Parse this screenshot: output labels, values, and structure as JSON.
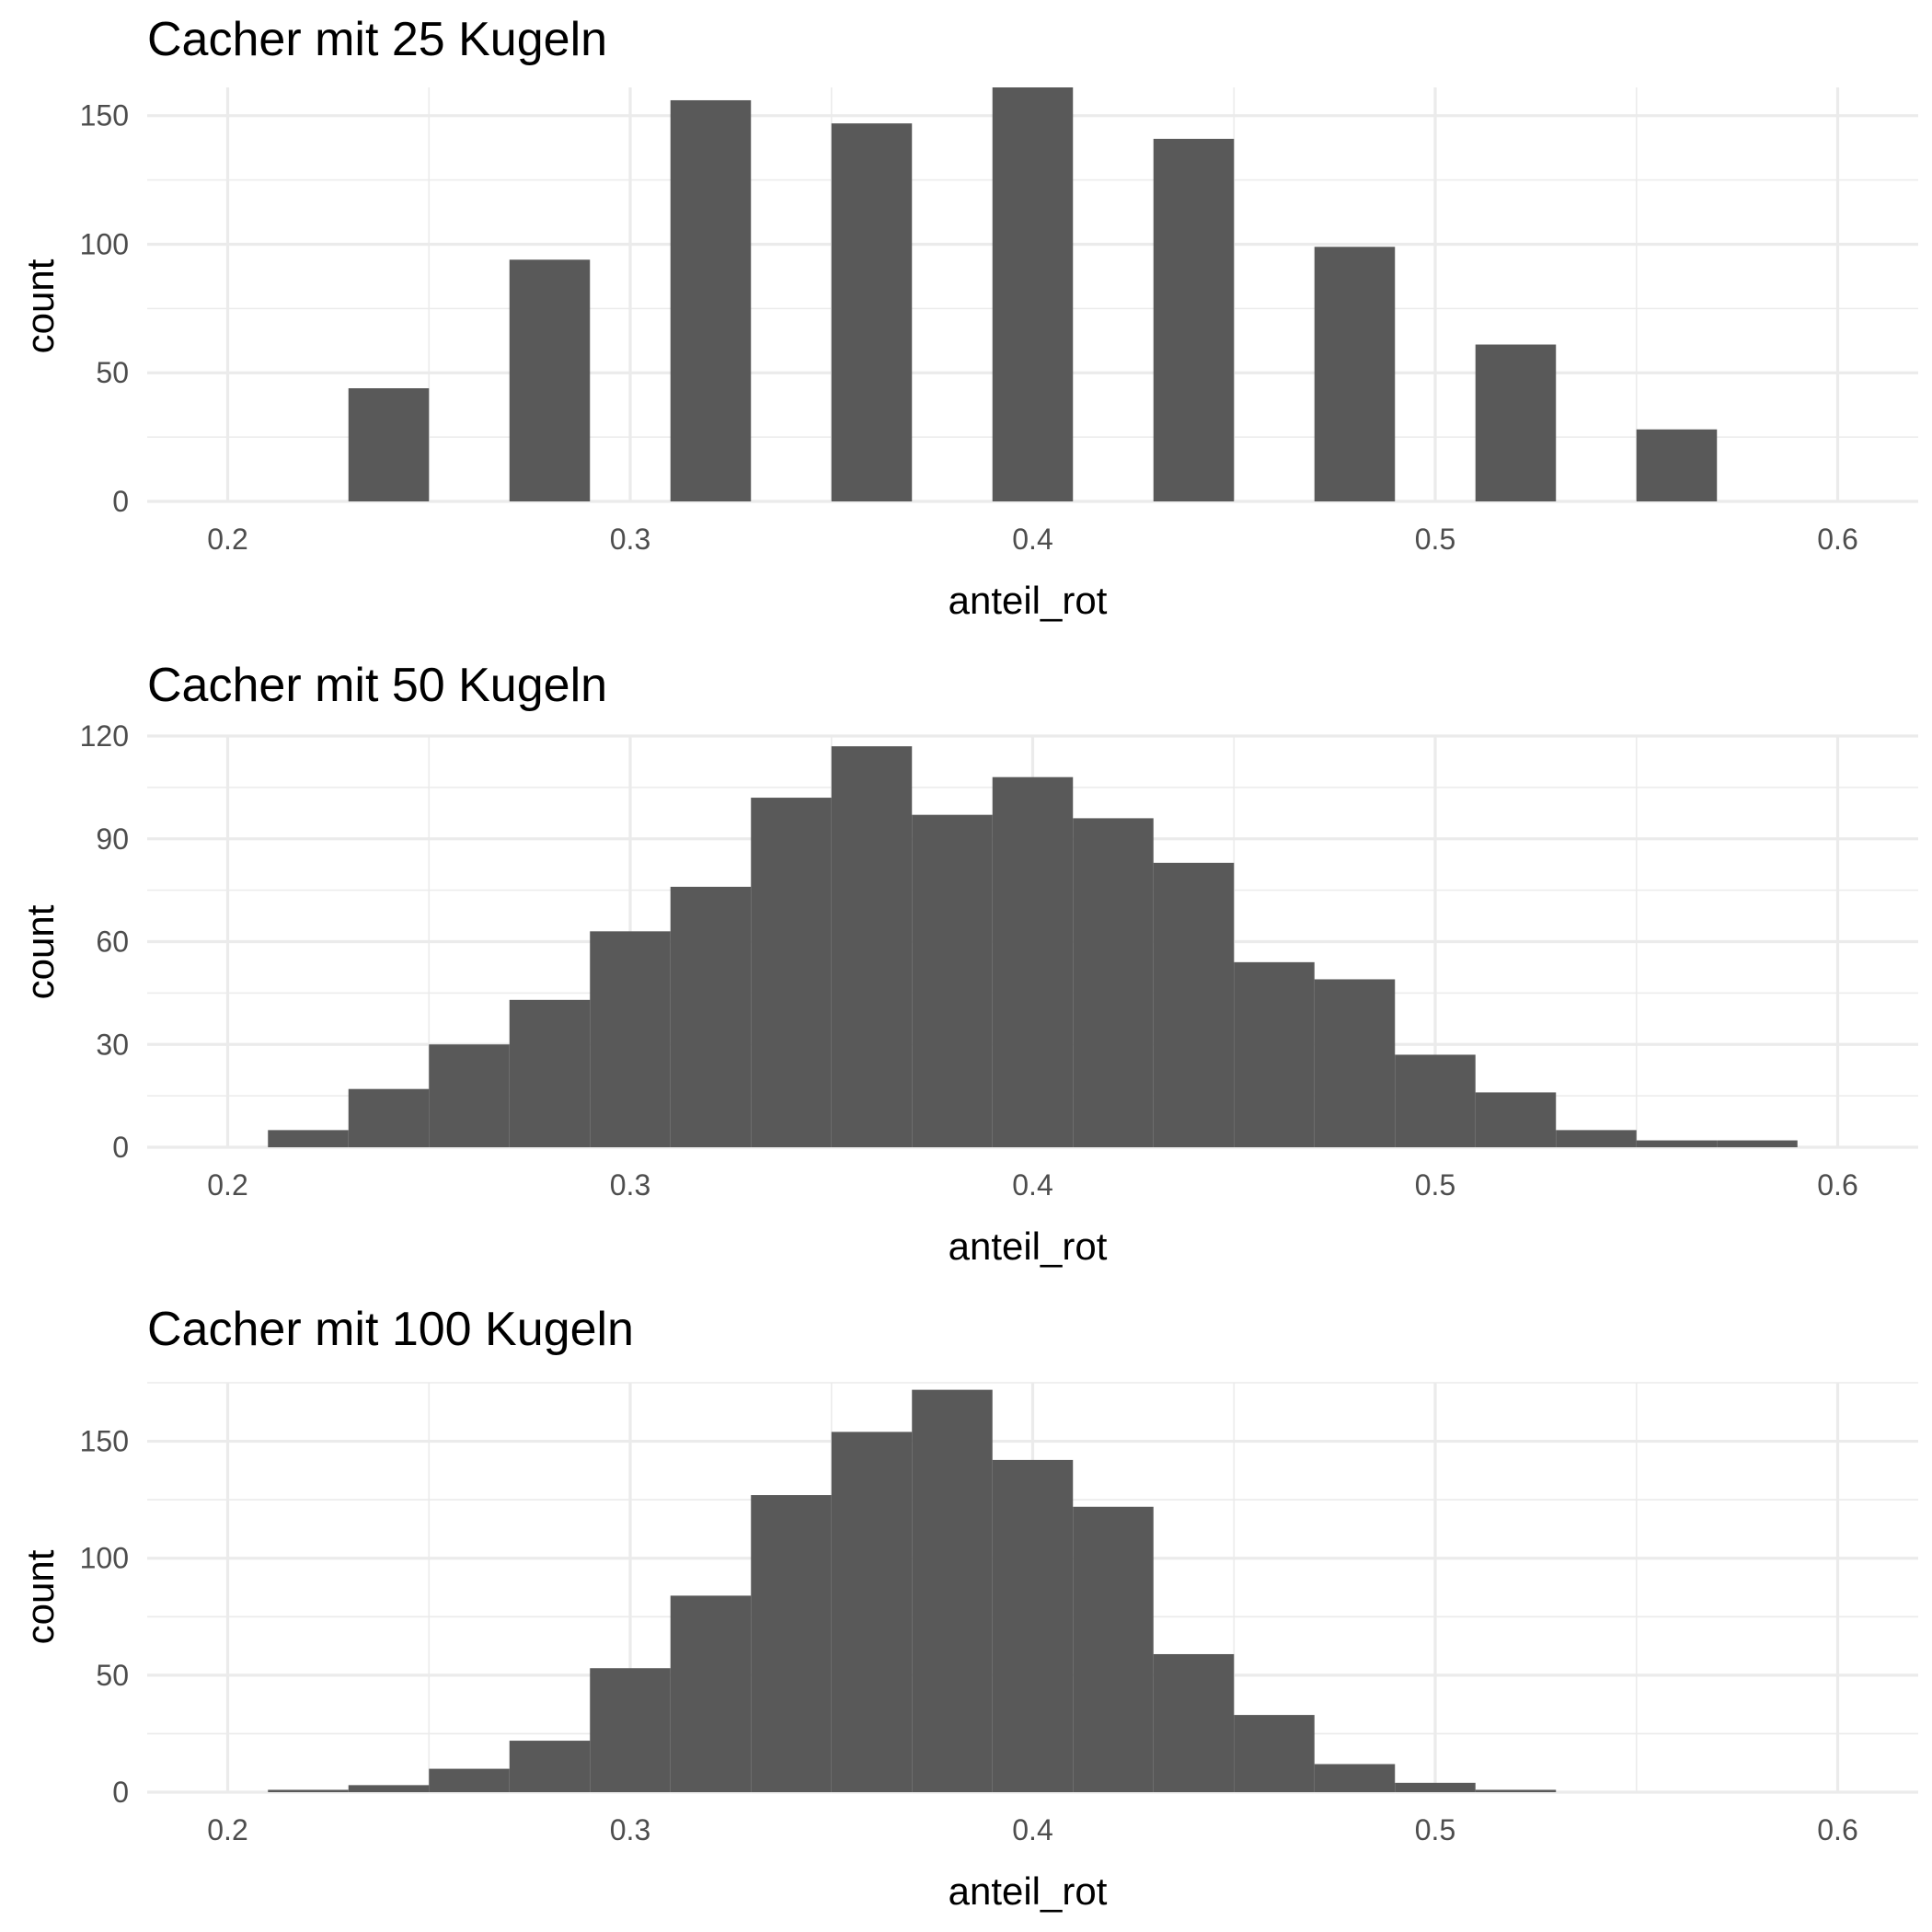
{
  "chart_data": [
    {
      "type": "bar",
      "title": "Cacher mit 25 Kugeln",
      "xlabel": "anteil_rot",
      "ylabel": "count",
      "binwidth": 0.02,
      "bins": [
        {
          "x0": 0.23,
          "x1": 0.25,
          "count": 44
        },
        {
          "x0": 0.27,
          "x1": 0.29,
          "count": 94
        },
        {
          "x0": 0.31,
          "x1": 0.33,
          "count": 156
        },
        {
          "x0": 0.35,
          "x1": 0.37,
          "count": 147
        },
        {
          "x0": 0.39,
          "x1": 0.41,
          "count": 161
        },
        {
          "x0": 0.43,
          "x1": 0.45,
          "count": 141
        },
        {
          "x0": 0.47,
          "x1": 0.49,
          "count": 99
        },
        {
          "x0": 0.51,
          "x1": 0.53,
          "count": 61
        },
        {
          "x0": 0.55,
          "x1": 0.57,
          "count": 28
        }
      ],
      "xlim": [
        0.18,
        0.62
      ],
      "ylim": [
        0,
        161
      ],
      "xticks": [
        0.2,
        0.3,
        0.4,
        0.5,
        0.6
      ],
      "xtick_labels": [
        "0.2",
        "0.3",
        "0.4",
        "0.5",
        "0.6"
      ],
      "yticks": [
        0,
        50,
        100,
        150
      ],
      "ytick_labels": [
        "0",
        "50",
        "100",
        "150"
      ],
      "grid": true
    },
    {
      "type": "bar",
      "title": "Cacher mit 50 Kugeln",
      "xlabel": "anteil_rot",
      "ylabel": "count",
      "binwidth": 0.02,
      "bins": [
        {
          "x0": 0.21,
          "x1": 0.23,
          "count": 5
        },
        {
          "x0": 0.23,
          "x1": 0.25,
          "count": 17
        },
        {
          "x0": 0.25,
          "x1": 0.27,
          "count": 30
        },
        {
          "x0": 0.27,
          "x1": 0.29,
          "count": 43
        },
        {
          "x0": 0.29,
          "x1": 0.31,
          "count": 63
        },
        {
          "x0": 0.31,
          "x1": 0.33,
          "count": 76
        },
        {
          "x0": 0.33,
          "x1": 0.35,
          "count": 102
        },
        {
          "x0": 0.35,
          "x1": 0.37,
          "count": 117
        },
        {
          "x0": 0.37,
          "x1": 0.39,
          "count": 97
        },
        {
          "x0": 0.39,
          "x1": 0.41,
          "count": 108
        },
        {
          "x0": 0.41,
          "x1": 0.43,
          "count": 96
        },
        {
          "x0": 0.43,
          "x1": 0.45,
          "count": 83
        },
        {
          "x0": 0.45,
          "x1": 0.47,
          "count": 54
        },
        {
          "x0": 0.47,
          "x1": 0.49,
          "count": 49
        },
        {
          "x0": 0.49,
          "x1": 0.51,
          "count": 27
        },
        {
          "x0": 0.51,
          "x1": 0.53,
          "count": 16
        },
        {
          "x0": 0.53,
          "x1": 0.55,
          "count": 5
        },
        {
          "x0": 0.55,
          "x1": 0.57,
          "count": 2
        },
        {
          "x0": 0.57,
          "x1": 0.59,
          "count": 2
        }
      ],
      "xlim": [
        0.18,
        0.62
      ],
      "ylim": [
        0,
        120
      ],
      "xticks": [
        0.2,
        0.3,
        0.4,
        0.5,
        0.6
      ],
      "xtick_labels": [
        "0.2",
        "0.3",
        "0.4",
        "0.5",
        "0.6"
      ],
      "yticks": [
        0,
        30,
        60,
        90,
        120
      ],
      "ytick_labels": [
        "0",
        "30",
        "60",
        "90",
        "120"
      ],
      "grid": true
    },
    {
      "type": "bar",
      "title": "Cacher mit 100 Kugeln",
      "xlabel": "anteil_rot",
      "ylabel": "count",
      "binwidth": 0.02,
      "bins": [
        {
          "x0": 0.21,
          "x1": 0.23,
          "count": 1
        },
        {
          "x0": 0.23,
          "x1": 0.25,
          "count": 3
        },
        {
          "x0": 0.25,
          "x1": 0.27,
          "count": 10
        },
        {
          "x0": 0.27,
          "x1": 0.29,
          "count": 22
        },
        {
          "x0": 0.29,
          "x1": 0.31,
          "count": 53
        },
        {
          "x0": 0.31,
          "x1": 0.33,
          "count": 84
        },
        {
          "x0": 0.33,
          "x1": 0.35,
          "count": 127
        },
        {
          "x0": 0.35,
          "x1": 0.37,
          "count": 154
        },
        {
          "x0": 0.37,
          "x1": 0.39,
          "count": 172
        },
        {
          "x0": 0.39,
          "x1": 0.41,
          "count": 142
        },
        {
          "x0": 0.41,
          "x1": 0.43,
          "count": 122
        },
        {
          "x0": 0.43,
          "x1": 0.45,
          "count": 59
        },
        {
          "x0": 0.45,
          "x1": 0.47,
          "count": 33
        },
        {
          "x0": 0.47,
          "x1": 0.49,
          "count": 12
        },
        {
          "x0": 0.49,
          "x1": 0.51,
          "count": 4
        },
        {
          "x0": 0.51,
          "x1": 0.53,
          "count": 1
        }
      ],
      "xlim": [
        0.18,
        0.62
      ],
      "ylim": [
        0,
        175
      ],
      "xticks": [
        0.2,
        0.3,
        0.4,
        0.5,
        0.6
      ],
      "xtick_labels": [
        "0.2",
        "0.3",
        "0.4",
        "0.5",
        "0.6"
      ],
      "yticks": [
        0,
        50,
        100,
        150
      ],
      "ytick_labels": [
        "0",
        "50",
        "100",
        "150"
      ],
      "grid": true
    }
  ]
}
